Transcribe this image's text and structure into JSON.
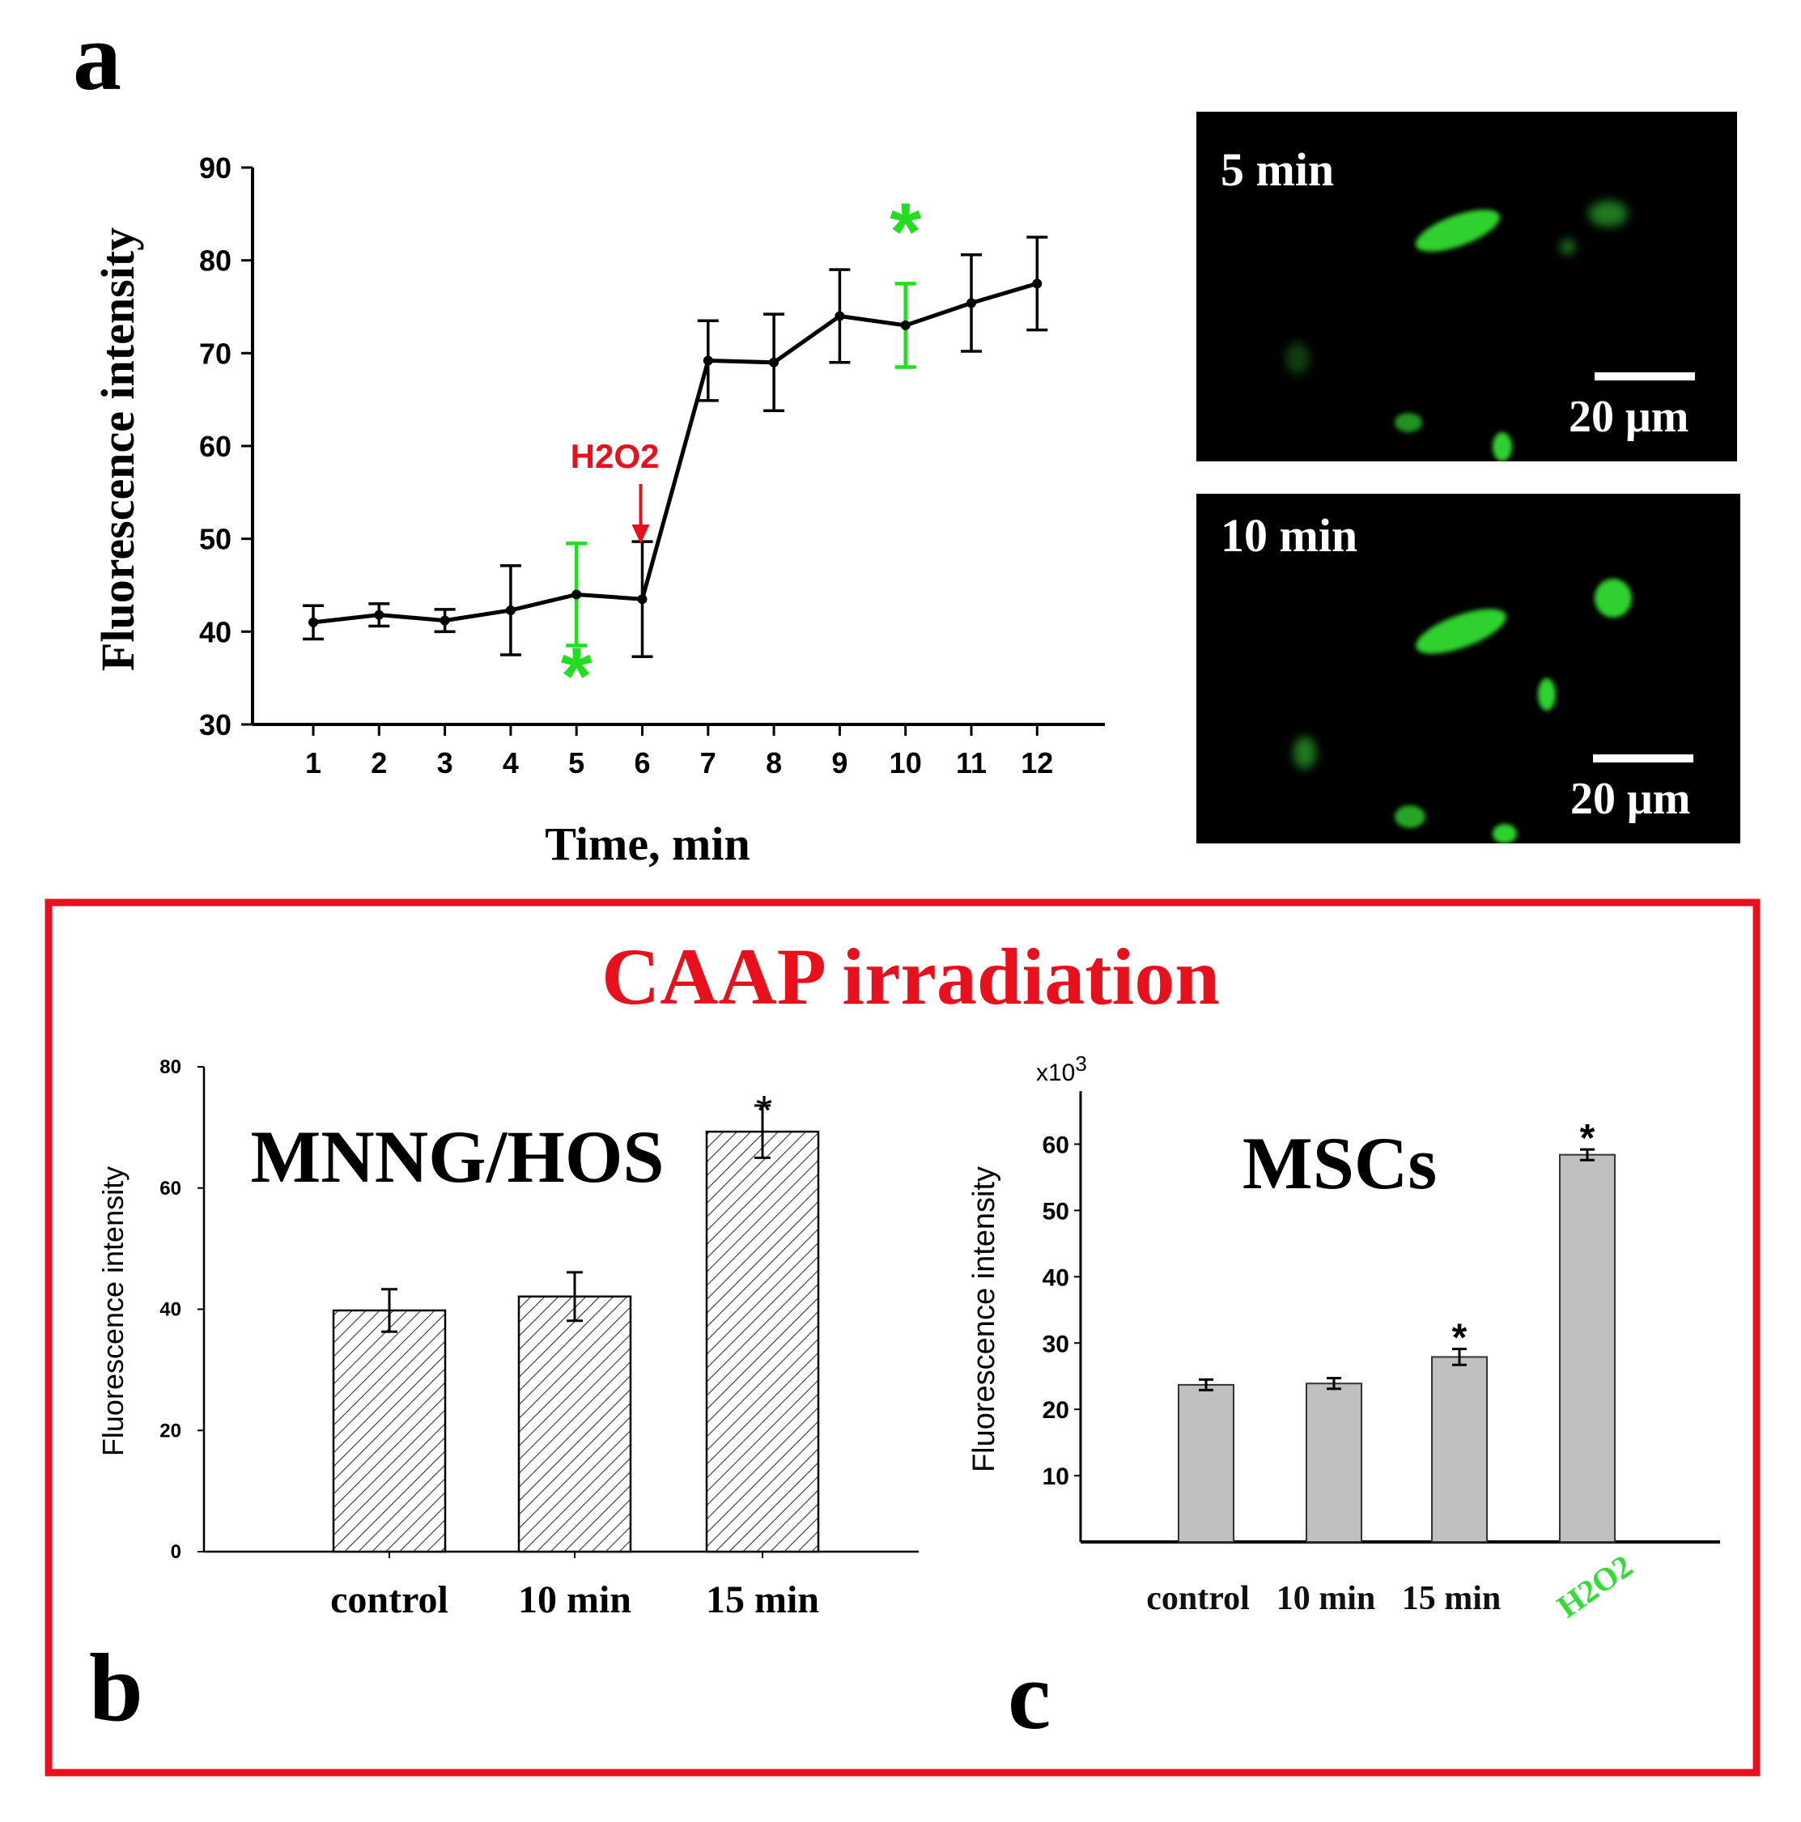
{
  "panel_a": {
    "label": "a",
    "annotation": "H2O2",
    "chart_data": {
      "type": "line",
      "title": "",
      "xlabel": "Time, min",
      "ylabel": "Fluorescence intensity",
      "x": [
        1,
        2,
        3,
        4,
        5,
        6,
        7,
        8,
        9,
        10,
        11,
        12
      ],
      "values": [
        41,
        41.8,
        41.2,
        42.3,
        44,
        43.5,
        69.2,
        69,
        74,
        73,
        75.4,
        77.5
      ],
      "errors": [
        1.8,
        1.2,
        1.2,
        4.8,
        5.5,
        6.2,
        4.3,
        5.2,
        5,
        4.5,
        5.2,
        5
      ],
      "highlighted_x": [
        5,
        10
      ],
      "highlight_color": "#22dd22",
      "highlight_marker": "*",
      "annotation_at_x": 6,
      "annotation_color": "#e8101c",
      "ylim": [
        30,
        90
      ],
      "yticks": [
        30,
        40,
        50,
        60,
        70,
        80,
        90
      ]
    },
    "images": [
      {
        "label": "5 min",
        "scale": "20 μm"
      },
      {
        "label": "10 min",
        "scale": "20 μm"
      }
    ]
  },
  "box": {
    "title": "CAAP irradiation",
    "color": "#e8101c"
  },
  "panel_b": {
    "label": "b",
    "chart_data": {
      "type": "bar",
      "title": "MNNG/HOS",
      "xlabel": "",
      "ylabel": "Fluorescence intensity",
      "categories": [
        "control",
        "10 min",
        "15 min"
      ],
      "values": [
        39.8,
        42.1,
        69.3
      ],
      "errors": [
        3.5,
        4,
        4.3
      ],
      "significance": [
        "",
        "",
        "*"
      ],
      "ylim": [
        0,
        80
      ],
      "yticks": [
        0,
        20,
        40,
        60,
        80
      ]
    }
  },
  "panel_c": {
    "label": "c",
    "chart_data": {
      "type": "bar",
      "title": "MSCs",
      "xlabel": "",
      "ylabel": "Fluorescence intensity",
      "axis_multiplier": "x10",
      "axis_multiplier_exp": "3",
      "categories": [
        "control",
        "10 min",
        "15 min",
        "H2O2"
      ],
      "category_colors": [
        "#111111",
        "#111111",
        "#111111",
        "#33dd33"
      ],
      "values": [
        23.7,
        23.9,
        27.9,
        58.4
      ],
      "errors": [
        0.8,
        0.8,
        1.2,
        0.8
      ],
      "significance": [
        "",
        "",
        "*",
        "*"
      ],
      "ylim": [
        0,
        68
      ],
      "yticks": [
        10,
        20,
        30,
        40,
        50,
        60
      ]
    }
  }
}
